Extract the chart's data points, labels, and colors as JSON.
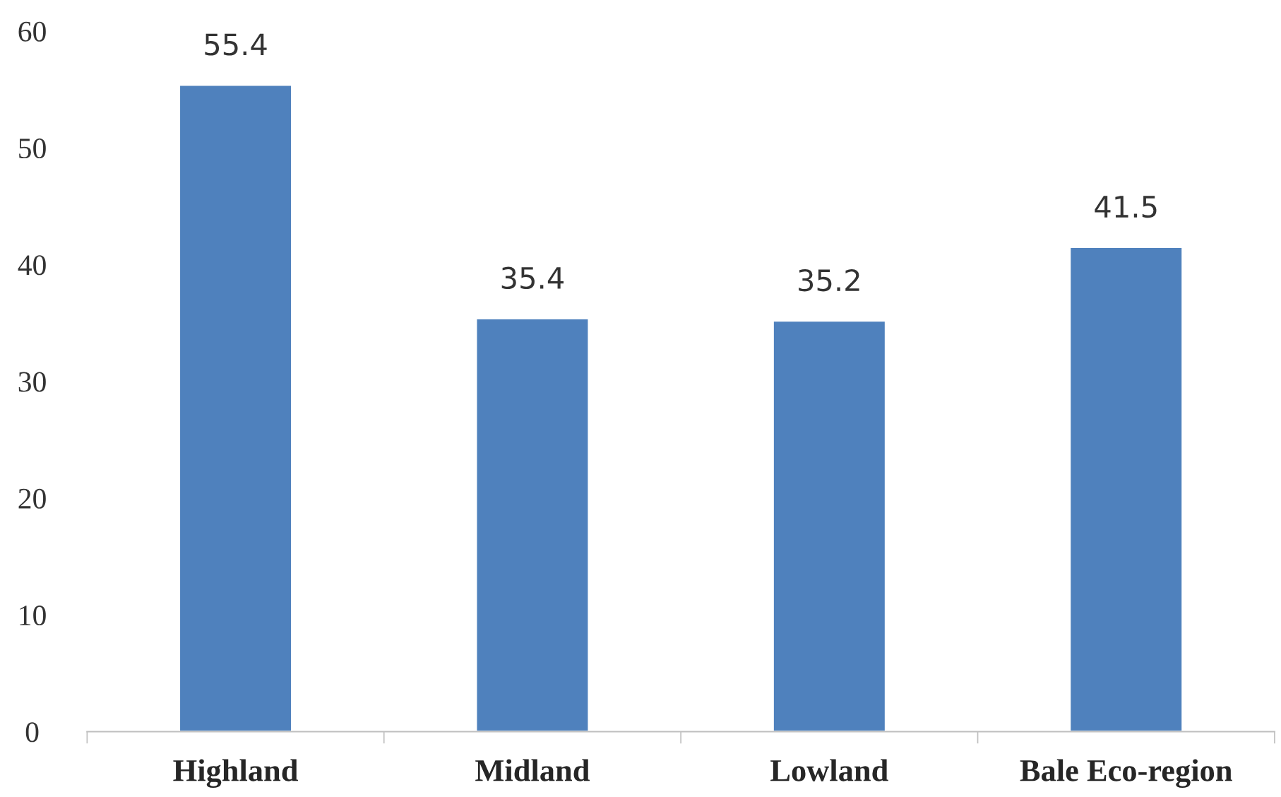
{
  "chart_data": {
    "type": "bar",
    "categories": [
      "Highland",
      "Midland",
      "Lowland",
      "Bale Eco-region"
    ],
    "values": [
      55.4,
      35.4,
      35.2,
      41.5
    ],
    "color": "#4f81bd",
    "ylim": [
      0,
      60
    ],
    "yticks": [
      0,
      10,
      20,
      30,
      40,
      50,
      60
    ],
    "grid": false,
    "data_labels": true
  }
}
